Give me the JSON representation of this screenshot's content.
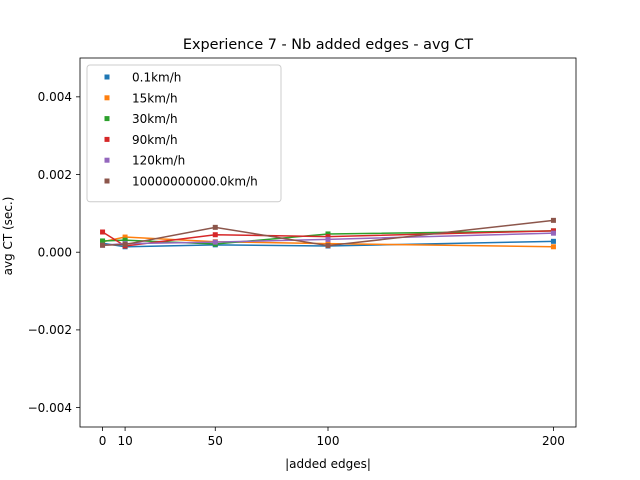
{
  "chart_data": {
    "type": "line",
    "title": "Experience 7 - Nb added edges - avg CT",
    "xlabel": "|added edges|",
    "ylabel": "avg CT (sec.)",
    "xlim": [
      -10,
      210
    ],
    "ylim": [
      -0.0045,
      0.005
    ],
    "xticks": [
      0,
      10,
      50,
      100,
      200
    ],
    "xtick_labels": [
      "0",
      "10",
      "50",
      "100",
      "200"
    ],
    "yticks": [
      -0.004,
      -0.002,
      0.0,
      0.002,
      0.004
    ],
    "ytick_labels": [
      "−0.004",
      "−0.002",
      "0.000",
      "0.002",
      "0.004"
    ],
    "grid": false,
    "legend_position": "top-left",
    "marker": "square",
    "x": [
      0,
      10,
      50,
      100,
      200
    ],
    "series": [
      {
        "name": "0.1km/h",
        "color": "#1f77b4",
        "values": [
          0.00023,
          0.00014,
          0.00019,
          0.00016,
          0.00028
        ]
      },
      {
        "name": "15km/h",
        "color": "#ff7f0e",
        "values": [
          0.00027,
          0.00039,
          0.00027,
          0.00022,
          0.00014
        ]
      },
      {
        "name": "30km/h",
        "color": "#2ca02c",
        "values": [
          0.00029,
          0.00031,
          0.00021,
          0.00047,
          0.00055
        ]
      },
      {
        "name": "90km/h",
        "color": "#d62728",
        "values": [
          0.00052,
          0.00016,
          0.00045,
          0.0004,
          0.00055
        ]
      },
      {
        "name": "120km/h",
        "color": "#9467bd",
        "values": [
          0.00018,
          0.00022,
          0.00026,
          0.00033,
          0.00049
        ]
      },
      {
        "name": "10000000000.0km/h",
        "color": "#8c564b",
        "values": [
          0.00018,
          0.0002,
          0.00064,
          0.00017,
          0.00082
        ]
      }
    ]
  }
}
